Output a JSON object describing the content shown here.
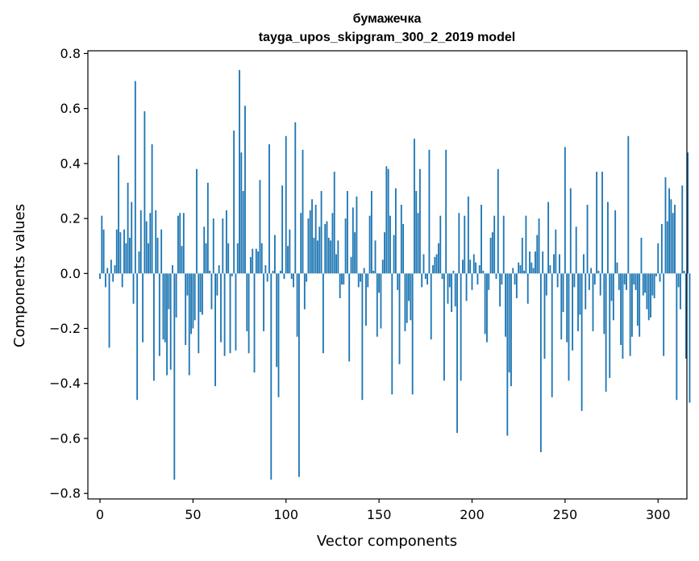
{
  "chart_data": {
    "type": "bar",
    "title": "бумажечка",
    "subtitle": "tayga_upos_skipgram_300_2_2019 model",
    "xlabel": "Vector components",
    "ylabel": "Components values",
    "xlim": [
      -6.5,
      315.5
    ],
    "ylim": [
      -0.82,
      0.81
    ],
    "xticks": [
      0,
      50,
      100,
      150,
      200,
      250,
      300
    ],
    "yticks": [
      -0.8,
      -0.6,
      -0.4,
      -0.2,
      0.0,
      0.2,
      0.4,
      0.6,
      0.8
    ],
    "ytick_labels": [
      "−0.8",
      "−0.6",
      "−0.4",
      "−0.2",
      "0.0",
      "0.2",
      "0.4",
      "0.6",
      "0.8"
    ],
    "grid": false,
    "bar_color": "#1f77b4",
    "values": [
      -0.02,
      0.21,
      0.16,
      -0.05,
      0.02,
      -0.27,
      0.05,
      -0.03,
      0.03,
      0.16,
      0.43,
      0.15,
      -0.05,
      0.16,
      0.11,
      0.33,
      0.13,
      0.26,
      -0.11,
      0.7,
      -0.46,
      0.08,
      0.23,
      -0.25,
      0.59,
      0.19,
      0.11,
      0.22,
      0.47,
      -0.39,
      0.23,
      0.13,
      -0.3,
      0.16,
      -0.24,
      -0.25,
      -0.37,
      -0.13,
      -0.35,
      0.03,
      -0.75,
      -0.16,
      0.21,
      0.22,
      0.1,
      0.22,
      -0.26,
      -0.08,
      -0.37,
      -0.22,
      -0.2,
      -0.17,
      0.38,
      -0.29,
      -0.14,
      -0.15,
      0.17,
      0.11,
      0.33,
      0.01,
      -0.13,
      0.2,
      -0.41,
      -0.08,
      0.03,
      -0.25,
      0.2,
      -0.3,
      0.23,
      0.11,
      -0.29,
      -0.01,
      0.52,
      -0.28,
      0.11,
      0.74,
      0.44,
      0.3,
      0.61,
      -0.21,
      -0.29,
      0.06,
      0.09,
      -0.36,
      0.09,
      0.08,
      0.34,
      0.11,
      -0.21,
      0.03,
      -0.03,
      0.47,
      -0.75,
      0.01,
      0.14,
      -0.34,
      -0.45,
      0.01,
      0.32,
      -0.02,
      0.5,
      0.1,
      0.16,
      -0.02,
      -0.05,
      0.55,
      -0.23,
      -0.74,
      0.22,
      0.45,
      -0.13,
      -0.03,
      0.2,
      0.23,
      0.27,
      0.13,
      0.25,
      0.12,
      0.17,
      0.3,
      -0.29,
      0.18,
      0.19,
      0.13,
      0.12,
      0.22,
      0.37,
      0.07,
      0.12,
      -0.09,
      -0.04,
      -0.04,
      0.2,
      0.3,
      -0.32,
      0.06,
      0.24,
      0.15,
      0.28,
      -0.05,
      -0.03,
      -0.46,
      0.02,
      -0.19,
      -0.05,
      0.21,
      0.3,
      0.01,
      0.12,
      -0.23,
      -0.07,
      -0.2,
      0.05,
      0.15,
      0.39,
      0.38,
      0.21,
      -0.44,
      0.14,
      0.31,
      -0.06,
      -0.33,
      0.25,
      0.18,
      -0.21,
      -0.18,
      -0.1,
      -0.17,
      -0.44,
      0.49,
      0.3,
      0.22,
      0.38,
      -0.05,
      0.07,
      -0.02,
      -0.04,
      0.45,
      -0.24,
      0.03,
      0.06,
      0.07,
      0.11,
      0.21,
      -0.02,
      -0.39,
      0.45,
      -0.11,
      -0.05,
      -0.14,
      0.01,
      -0.12,
      -0.58,
      0.22,
      -0.39,
      0.05,
      0.21,
      -0.1,
      0.28,
      0.05,
      -0.06,
      0.07,
      0.04,
      -0.04,
      0.03,
      0.25,
      0.01,
      -0.22,
      -0.25,
      -0.06,
      0.13,
      0.15,
      0.21,
      -0.02,
      0.38,
      -0.12,
      -0.04,
      0.21,
      -0.23,
      -0.59,
      -0.36,
      -0.41,
      0.02,
      -0.04,
      -0.09,
      0.04,
      0.03,
      0.13,
      0.01,
      0.21,
      -0.11,
      0.08,
      0.04,
      0.02,
      0.08,
      0.14,
      0.2,
      -0.65,
      0.08,
      -0.31,
      -0.08,
      0.26,
      0.03,
      -0.45,
      0.07,
      0.16,
      -0.05,
      0.07,
      -0.24,
      -0.14,
      0.46,
      -0.25,
      -0.39,
      0.31,
      -0.28,
      -0.05,
      0.17,
      -0.21,
      -0.15,
      -0.5,
      0.07,
      -0.13,
      0.25,
      -0.06,
      0.02,
      -0.21,
      -0.04,
      0.37,
      0.01,
      -0.08,
      0.37,
      -0.22,
      -0.43,
      0.26,
      -0.38,
      -0.1,
      -0.17,
      0.23,
      0.04,
      -0.06,
      -0.26,
      -0.31,
      -0.04,
      -0.06,
      0.5,
      -0.3,
      -0.23,
      -0.04,
      -0.06,
      -0.19,
      -0.23,
      0.13,
      -0.08,
      -0.07,
      -0.13,
      -0.17,
      -0.16,
      -0.08,
      -0.09,
      -0.01,
      0.11,
      -0.03,
      0.18,
      -0.3,
      0.35,
      0.19,
      0.31,
      0.27,
      0.22,
      0.25,
      -0.46,
      -0.05,
      -0.13,
      0.32,
      0.01,
      -0.31,
      0.44,
      -0.47
    ]
  }
}
